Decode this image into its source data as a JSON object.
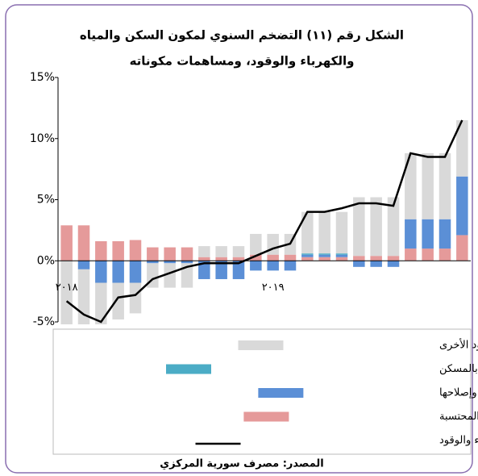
{
  "chart_data": {
    "type": "bar",
    "title": "الشكل رقم (١١) التضخم السنوي لمكون السكن والمياه",
    "subtitle": "والكهرباء والوقود، ومساهمات مكوناته",
    "source": "المصدر: مصرف سورية المركزي",
    "stacked": true,
    "categories": [
      "٢٠١٨",
      null,
      null,
      null,
      null,
      null,
      null,
      null,
      null,
      null,
      null,
      null,
      "٢٠١٩",
      null,
      null,
      null,
      null,
      null,
      null,
      null,
      null,
      null,
      null,
      null
    ],
    "series": [
      {
        "name": "الكهرباء والغاز وأنواع الوقود الأخرى",
        "color": "#d9d9d9",
        "values": [
          -5.2,
          -4.5,
          -3.4,
          -3.0,
          -2.5,
          -2.0,
          -2.0,
          -2.0,
          0.9,
          0.9,
          0.9,
          1.7,
          1.7,
          1.7,
          3.4,
          3.4,
          3.4,
          4.8,
          4.8,
          4.8,
          5.4,
          5.4,
          5.4,
          4.6
        ]
      },
      {
        "name": "إمدادات المياه والخدمات المتنوعة المتصلة بالمسكن",
        "color": "#4bacc6",
        "values": [
          0,
          0,
          0,
          0,
          0,
          0,
          0,
          0,
          0,
          0,
          0,
          0,
          0,
          0,
          0.1,
          0.1,
          0.1,
          0,
          0,
          0,
          0,
          0,
          0,
          0
        ]
      },
      {
        "name": "أعمال صيانة المسكن وإصلاحها",
        "color": "#5b8fd6",
        "values": [
          0,
          -0.7,
          -1.8,
          -1.8,
          -1.8,
          -0.2,
          -0.2,
          -0.2,
          -1.5,
          -1.5,
          -1.5,
          -0.8,
          -0.8,
          -0.8,
          0.2,
          0.2,
          0.2,
          -0.5,
          -0.5,
          -0.5,
          2.4,
          2.4,
          2.4,
          4.8
        ]
      },
      {
        "name": "إيجارات السكن الفعلية+المحتسبة",
        "color": "#e59a9a",
        "values": [
          2.9,
          2.9,
          1.6,
          1.6,
          1.7,
          1.1,
          1.1,
          1.1,
          0.3,
          0.3,
          0.3,
          0.5,
          0.5,
          0.5,
          0.3,
          0.3,
          0.3,
          0.4,
          0.4,
          0.4,
          1.0,
          1.0,
          1.0,
          2.1
        ]
      },
      {
        "name": "تضخم مكون السكن والمياه والكهرباء والوقود",
        "color": "#000000",
        "type": "line",
        "values": [
          -3.3,
          -4.4,
          -5.0,
          -3.0,
          -2.8,
          -1.5,
          -1.0,
          -0.5,
          -0.2,
          -0.2,
          -0.2,
          0.4,
          1.0,
          1.4,
          4.0,
          4.0,
          4.3,
          4.7,
          4.7,
          4.5,
          8.8,
          8.5,
          8.5,
          11.5
        ]
      }
    ],
    "ylim": [
      -5,
      15
    ],
    "yticks": [
      {
        "value": -5,
        "label": "-5%"
      },
      {
        "value": 0,
        "label": "0%"
      },
      {
        "value": 5,
        "label": "5%"
      },
      {
        "value": 10,
        "label": "10%"
      },
      {
        "value": 15,
        "label": "15%"
      }
    ]
  }
}
